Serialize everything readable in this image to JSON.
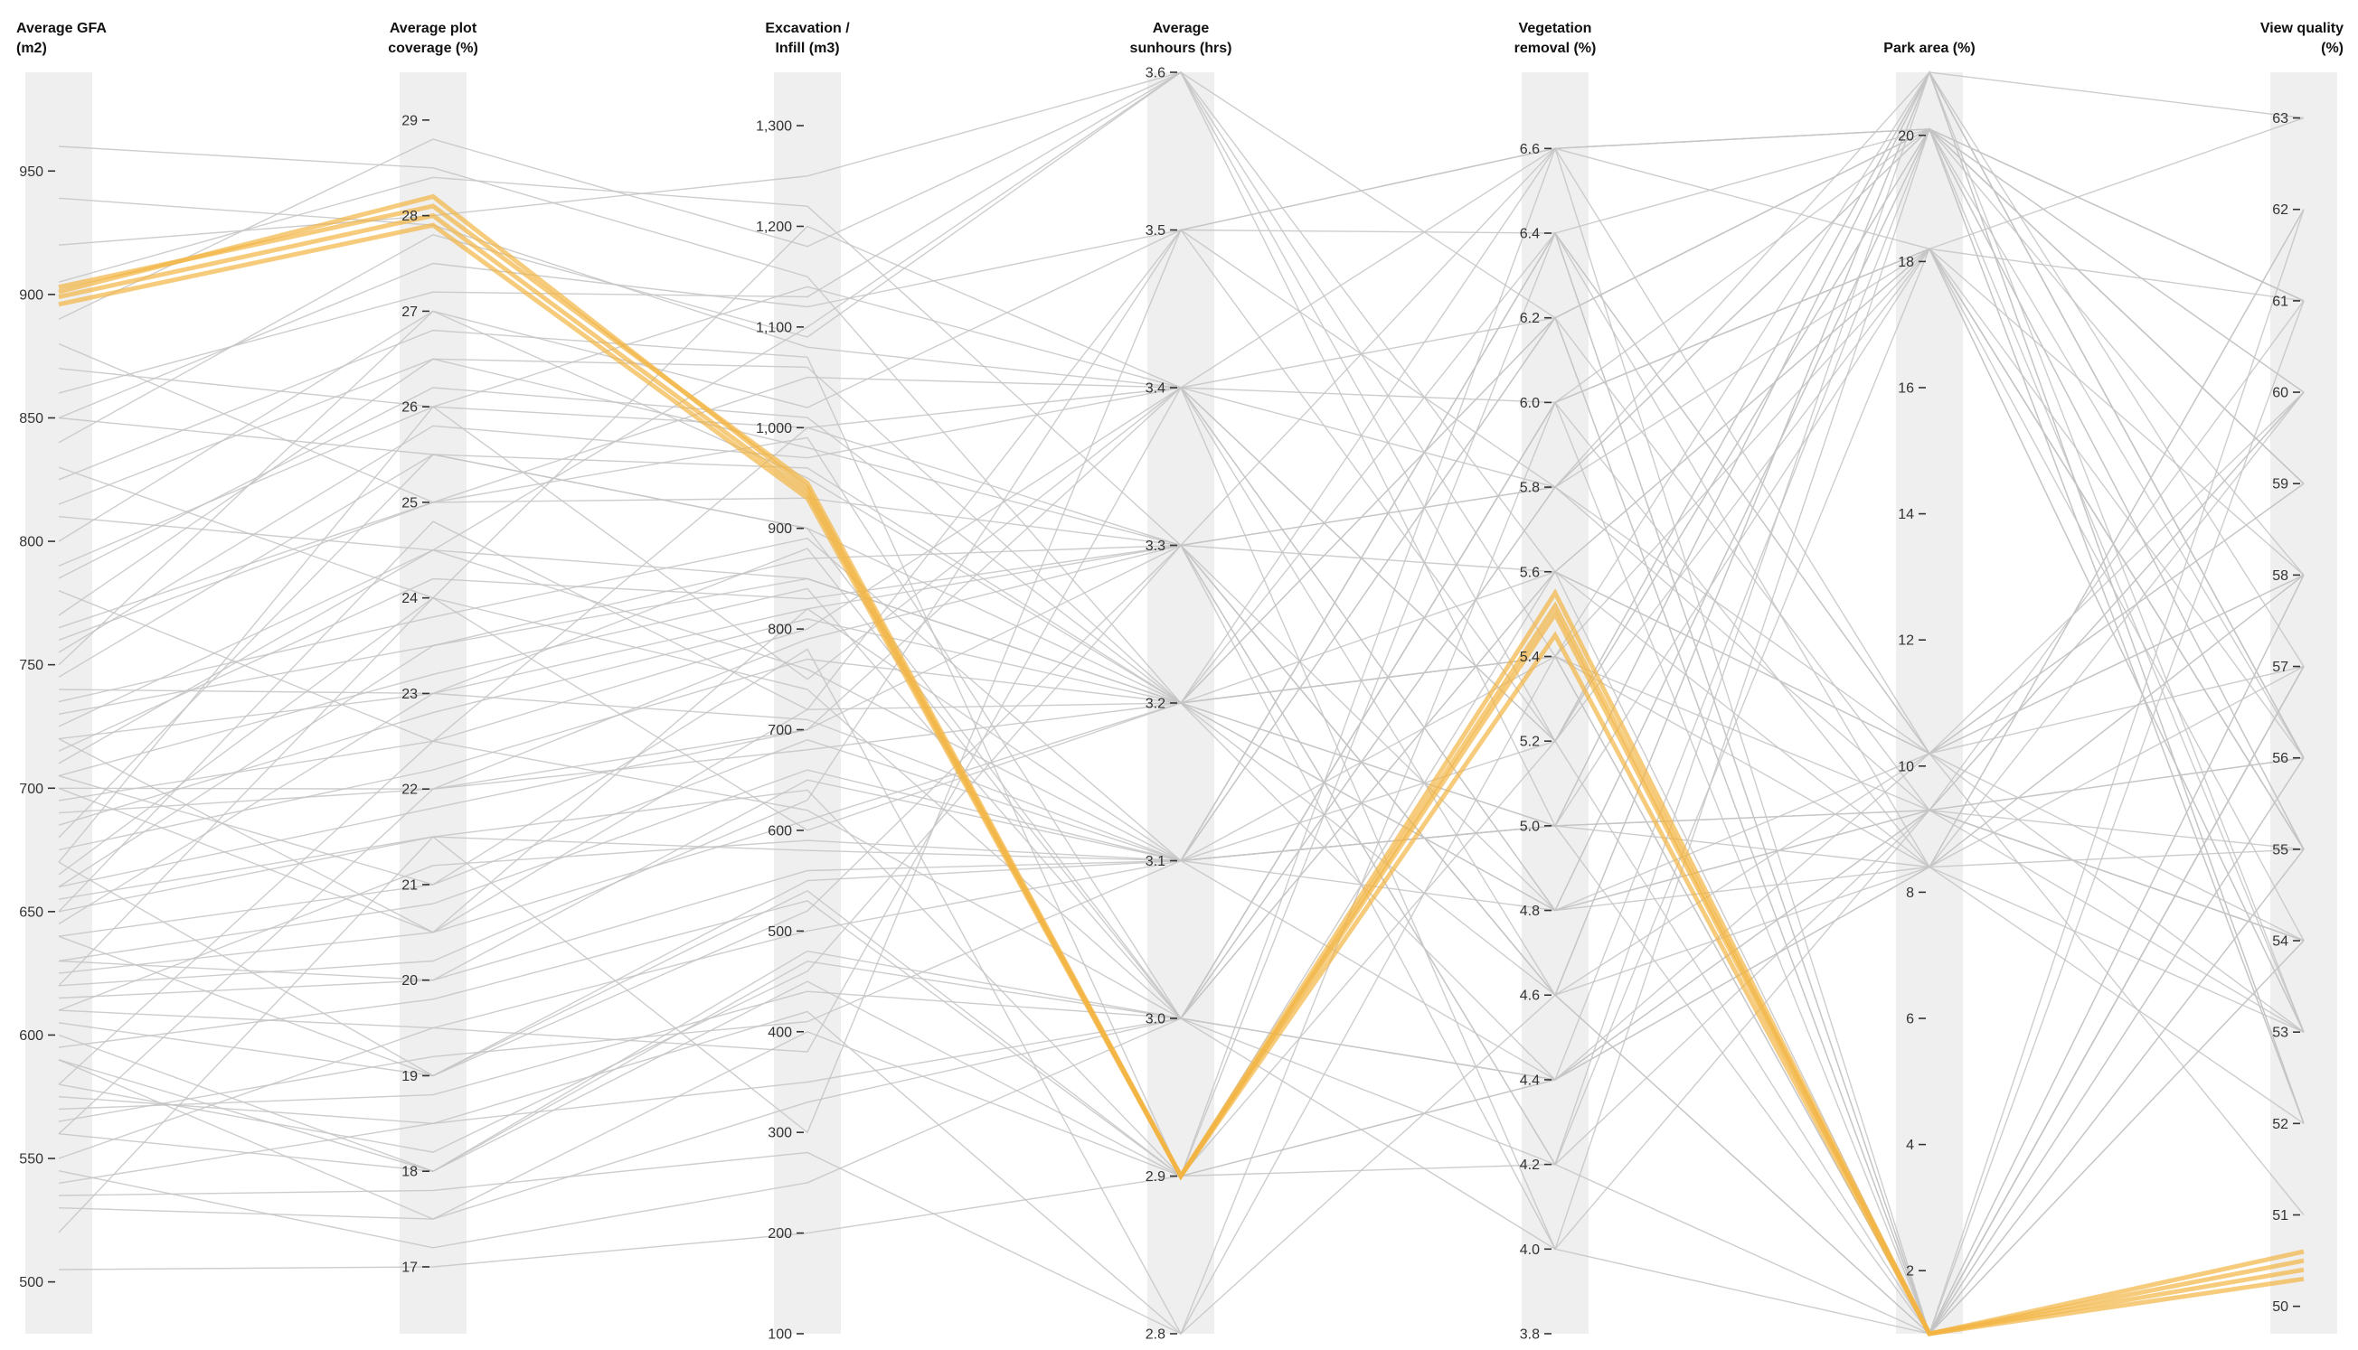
{
  "chart_data": {
    "type": "parallel_coordinates",
    "colors": {
      "background_line": "#c4c4c4",
      "highlight_line": "#f2b544",
      "axis_band": "#efefef"
    },
    "axes": [
      {
        "key": "gfa",
        "title_lines": [
          "Average GFA",
          "(m2)"
        ],
        "range": [
          479,
          990
        ],
        "ticks": [
          500,
          550,
          600,
          650,
          700,
          750,
          800,
          850,
          900,
          950
        ],
        "tick_labels": [
          "500",
          "550",
          "600",
          "650",
          "700",
          "750",
          "800",
          "850",
          "900",
          "950"
        ]
      },
      {
        "key": "plot",
        "title_lines": [
          "Average plot",
          "coverage (%)"
        ],
        "range": [
          16.3,
          29.5
        ],
        "ticks": [
          17,
          18,
          19,
          20,
          21,
          22,
          23,
          24,
          25,
          26,
          27,
          28,
          29
        ],
        "tick_labels": [
          "17",
          "18",
          "19",
          "20",
          "21",
          "22",
          "23",
          "24",
          "25",
          "26",
          "27",
          "28",
          "29"
        ]
      },
      {
        "key": "exc",
        "title_lines": [
          "Excavation /",
          "Infill (m3)"
        ],
        "range": [
          100,
          1353
        ],
        "ticks": [
          100,
          200,
          300,
          400,
          500,
          600,
          700,
          800,
          900,
          1000,
          1100,
          1200,
          1300
        ],
        "tick_labels": [
          "100",
          "200",
          "300",
          "400",
          "500",
          "600",
          "700",
          "800",
          "900",
          "1,000",
          "1,100",
          "1,200",
          "1,300"
        ]
      },
      {
        "key": "sun",
        "title_lines": [
          "Average",
          "sunhours (hrs)"
        ],
        "range": [
          2.8,
          3.6
        ],
        "ticks": [
          2.8,
          2.9,
          3.0,
          3.1,
          3.2,
          3.3,
          3.4,
          3.5,
          3.6
        ],
        "tick_labels": [
          "2.8",
          "2.9",
          "3.0",
          "3.1",
          "3.2",
          "3.3",
          "3.4",
          "3.5",
          "3.6"
        ]
      },
      {
        "key": "veg",
        "title_lines": [
          "Vegetation",
          "removal (%)"
        ],
        "range": [
          3.8,
          6.78
        ],
        "ticks": [
          3.8,
          4.0,
          4.2,
          4.4,
          4.6,
          4.8,
          5.0,
          5.2,
          5.4,
          5.6,
          5.8,
          6.0,
          6.2,
          6.4,
          6.6
        ],
        "tick_labels": [
          "3.8",
          "4.0",
          "4.2",
          "4.4",
          "4.6",
          "4.8",
          "5.0",
          "5.2",
          "5.4",
          "5.6",
          "5.8",
          "6.0",
          "6.2",
          "6.4",
          "6.6"
        ]
      },
      {
        "key": "park",
        "title_lines": [
          "Park area (%)"
        ],
        "range": [
          1,
          21
        ],
        "ticks": [
          2,
          4,
          6,
          8,
          10,
          12,
          14,
          16,
          18,
          20
        ],
        "tick_labels": [
          "2",
          "4",
          "6",
          "8",
          "10",
          "12",
          "14",
          "16",
          "18",
          "20"
        ]
      },
      {
        "key": "view",
        "title_lines": [
          "View quality",
          "(%)"
        ],
        "range": [
          49.7,
          63.5
        ],
        "ticks": [
          50,
          51,
          52,
          53,
          54,
          55,
          56,
          57,
          58,
          59,
          60,
          61,
          62,
          63
        ],
        "tick_labels": [
          "50",
          "51",
          "52",
          "53",
          "54",
          "55",
          "56",
          "57",
          "58",
          "59",
          "60",
          "61",
          "62",
          "63"
        ]
      }
    ],
    "discrete_levels": {
      "sun": [
        2.8,
        2.9,
        3.0,
        3.1,
        3.2,
        3.3,
        3.4,
        3.5,
        3.6
      ],
      "park": [
        1,
        8.4,
        9.3,
        10.2,
        18.2,
        20.1,
        21
      ]
    },
    "highlighted_series": [
      [
        901,
        28.2,
        940,
        2.9,
        5.55,
        1,
        50.5
      ],
      [
        896,
        27.9,
        930,
        2.9,
        5.45,
        1,
        50.3
      ],
      [
        899,
        28.0,
        935,
        2.9,
        5.5,
        1,
        50.6
      ],
      [
        903,
        28.1,
        945,
        2.9,
        5.52,
        1,
        50.4
      ]
    ],
    "background_series": [
      [
        939,
        27.9,
        1080,
        3.4,
        6.2,
        20.1,
        58
      ],
      [
        700,
        20.5,
        820,
        3.1,
        5.0,
        9.3,
        55
      ],
      [
        620,
        24.0,
        600,
        3.2,
        4.6,
        1,
        61
      ],
      [
        850,
        25.5,
        900,
        3.0,
        6.0,
        18.2,
        56
      ],
      [
        560,
        18.0,
        450,
        2.9,
        4.4,
        10.2,
        53
      ],
      [
        780,
        22.5,
        1000,
        3.3,
        5.8,
        21,
        57
      ],
      [
        670,
        26.0,
        750,
        3.4,
        4.8,
        8.4,
        52
      ],
      [
        520,
        21.5,
        300,
        3.5,
        6.4,
        20.1,
        60
      ],
      [
        960,
        28.5,
        1150,
        3.2,
        5.4,
        9.3,
        54
      ],
      [
        640,
        19.0,
        550,
        3.1,
        5.2,
        1,
        62
      ],
      [
        720,
        23.0,
        880,
        3.0,
        4.2,
        18.2,
        55
      ],
      [
        590,
        17.5,
        400,
        2.9,
        6.6,
        20.1,
        59
      ],
      [
        810,
        24.5,
        1100,
        3.6,
        5.6,
        10.2,
        51
      ],
      [
        690,
        22.0,
        700,
        3.3,
        4.0,
        9.3,
        56
      ],
      [
        750,
        27.0,
        950,
        3.2,
        6.2,
        1,
        58
      ],
      [
        630,
        20.0,
        650,
        3.1,
        5.0,
        8.4,
        57
      ],
      [
        880,
        25.0,
        1050,
        3.4,
        4.6,
        21,
        53
      ],
      [
        540,
        18.5,
        350,
        3.0,
        5.8,
        20.1,
        61
      ],
      [
        705,
        21.0,
        780,
        2.8,
        6.0,
        18.2,
        55
      ],
      [
        660,
        23.5,
        850,
        3.2,
        5.4,
        1,
        56
      ],
      [
        770,
        26.5,
        980,
        3.3,
        4.8,
        9.3,
        54
      ],
      [
        610,
        19.5,
        500,
        3.1,
        6.4,
        10.2,
        60
      ],
      [
        830,
        24.0,
        1200,
        3.4,
        5.2,
        20.1,
        52
      ],
      [
        580,
        22.5,
        620,
        3.0,
        4.4,
        8.4,
        58
      ],
      [
        720,
        20.5,
        720,
        3.5,
        6.6,
        1,
        57
      ],
      [
        680,
        25.5,
        900,
        3.2,
        5.6,
        18.2,
        55
      ],
      [
        505,
        17.0,
        200,
        2.9,
        4.2,
        21,
        63
      ],
      [
        920,
        28.0,
        1250,
        3.6,
        6.2,
        20.1,
        59
      ],
      [
        650,
        21.5,
        580,
        3.1,
        5.0,
        9.3,
        56
      ],
      [
        740,
        23.0,
        820,
        3.3,
        4.6,
        1,
        54
      ],
      [
        600,
        18.0,
        480,
        3.0,
        5.8,
        10.2,
        58
      ],
      [
        790,
        26.0,
        1000,
        3.4,
        6.0,
        8.4,
        53
      ],
      [
        560,
        22.0,
        680,
        3.2,
        4.8,
        20.1,
        61
      ],
      [
        710,
        24.5,
        760,
        3.1,
        5.4,
        18.2,
        55
      ],
      [
        670,
        19.0,
        540,
        2.9,
        6.4,
        1,
        57
      ],
      [
        850,
        27.5,
        1120,
        3.5,
        5.2,
        21,
        52
      ],
      [
        625,
        20.5,
        610,
        3.2,
        4.4,
        9.3,
        60
      ],
      [
        760,
        25.0,
        930,
        3.3,
        6.6,
        20.1,
        56
      ],
      [
        530,
        17.5,
        330,
        3.0,
        5.6,
        10.2,
        59
      ],
      [
        695,
        22.5,
        800,
        3.4,
        4.0,
        1,
        54
      ],
      [
        640,
        21.0,
        690,
        3.1,
        5.0,
        18.2,
        58
      ],
      [
        815,
        26.5,
        1060,
        3.2,
        6.2,
        20.1,
        55
      ],
      [
        575,
        18.5,
        420,
        2.8,
        4.6,
        8.4,
        62
      ],
      [
        730,
        23.5,
        870,
        3.3,
        5.8,
        9.3,
        53
      ],
      [
        665,
        24.0,
        740,
        3.0,
        6.0,
        1,
        57
      ],
      [
        890,
        28.8,
        1180,
        3.6,
        5.4,
        21,
        56
      ],
      [
        615,
        20.0,
        560,
        3.1,
        4.8,
        20.1,
        59
      ],
      [
        745,
        25.5,
        960,
        3.2,
        6.4,
        10.2,
        54
      ],
      [
        550,
        19.5,
        380,
        3.4,
        5.2,
        18.2,
        61
      ],
      [
        700,
        22.0,
        790,
        3.3,
        4.2,
        1,
        55
      ],
      [
        655,
        21.5,
        640,
        2.9,
        5.6,
        8.4,
        58
      ],
      [
        800,
        27.0,
        1020,
        3.5,
        6.6,
        20.1,
        52
      ],
      [
        590,
        18.0,
        470,
        3.0,
        4.4,
        9.3,
        60
      ],
      [
        725,
        24.5,
        850,
        3.2,
        5.0,
        21,
        56
      ],
      [
        645,
        23.0,
        710,
        3.1,
        6.2,
        1,
        57
      ],
      [
        870,
        26.0,
        1140,
        3.4,
        5.8,
        18.2,
        53
      ],
      [
        605,
        19.0,
        520,
        3.3,
        4.6,
        10.2,
        59
      ],
      [
        765,
        25.0,
        990,
        3.0,
        6.0,
        20.1,
        55
      ],
      [
        535,
        17.8,
        280,
        2.8,
        5.4,
        8.4,
        62
      ],
      [
        685,
        22.8,
        810,
        3.2,
        4.8,
        9.3,
        54
      ],
      [
        630,
        20.8,
        660,
        3.1,
        6.4,
        1,
        58
      ],
      [
        840,
        27.8,
        1090,
        3.6,
        5.2,
        21,
        56
      ],
      [
        570,
        18.8,
        440,
        3.0,
        4.0,
        20.1,
        61
      ],
      [
        715,
        24.2,
        830,
        3.3,
        5.6,
        18.2,
        53
      ],
      [
        660,
        21.8,
        700,
        3.4,
        6.6,
        10.2,
        57
      ],
      [
        785,
        26.2,
        1010,
        3.2,
        5.0,
        1,
        55
      ],
      [
        595,
        19.8,
        530,
        2.9,
        4.4,
        8.4,
        60
      ],
      [
        735,
        23.8,
        890,
        3.1,
        6.2,
        9.3,
        54
      ],
      [
        620,
        20.2,
        630,
        3.5,
        5.8,
        20.1,
        59
      ],
      [
        905,
        28.4,
        1220,
        3.3,
        4.6,
        21,
        52
      ],
      [
        545,
        17.2,
        250,
        3.0,
        6.0,
        18.2,
        63
      ],
      [
        675,
        22.2,
        770,
        3.2,
        5.4,
        1,
        56
      ],
      [
        755,
        25.8,
        970,
        3.4,
        4.8,
        10.2,
        58
      ],
      [
        610,
        21.2,
        590,
        3.1,
        6.4,
        8.4,
        55
      ],
      [
        825,
        26.8,
        1070,
        2.9,
        5.2,
        20.1,
        53
      ],
      [
        580,
        18.2,
        460,
        3.3,
        4.2,
        9.3,
        61
      ],
      [
        705,
        23.2,
        840,
        3.0,
        5.6,
        1,
        57
      ],
      [
        650,
        24.8,
        720,
        3.2,
        6.6,
        18.2,
        54
      ],
      [
        860,
        27.2,
        1130,
        3.6,
        5.0,
        21,
        56
      ],
      [
        565,
        19.2,
        410,
        3.1,
        4.4,
        20.1,
        60
      ]
    ]
  }
}
